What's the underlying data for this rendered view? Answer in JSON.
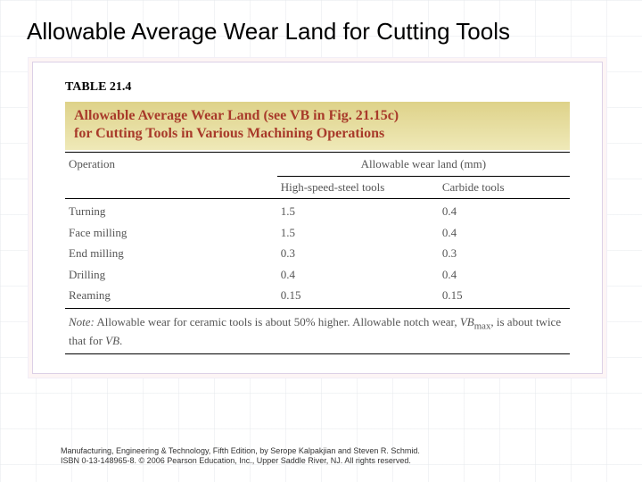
{
  "slide": {
    "title": "Allowable Average Wear Land for Cutting Tools"
  },
  "table": {
    "label": "TABLE 21.4",
    "caption_line1": "Allowable Average Wear Land (see VB in Fig. 21.15c)",
    "caption_line2": "for Cutting Tools in Various Machining Operations",
    "header": {
      "col1": "Operation",
      "col2_span": "Allowable wear land (mm)",
      "sub_col2": "High-speed-steel tools",
      "sub_col3": "Carbide tools"
    },
    "rows": [
      {
        "op": "Turning",
        "hs": "1.5",
        "cb": "0.4"
      },
      {
        "op": "Face milling",
        "hs": "1.5",
        "cb": "0.4"
      },
      {
        "op": "End milling",
        "hs": "0.3",
        "cb": "0.3"
      },
      {
        "op": "Drilling",
        "hs": "0.4",
        "cb": "0.4"
      },
      {
        "op": "Reaming",
        "hs": "0.15",
        "cb": "0.15"
      }
    ],
    "note_prefix": "Note:",
    "note_body": "  Allowable wear for ceramic tools is about 50% higher. Allowable notch wear, ",
    "note_symbol": "VB",
    "note_sub": "max",
    "note_tail": ", is about twice that for ",
    "note_symbol2": "VB",
    "note_end": "."
  },
  "credit": {
    "line1": "Manufacturing, Engineering & Technology, Fifth Edition, by Serope Kalpakjian and Steven R. Schmid.",
    "line2": "ISBN 0-13-148965-8. © 2006 Pearson Education, Inc., Upper Saddle River, NJ.  All rights reserved."
  },
  "style": {
    "caption_bg_top": "#ded289",
    "caption_bg_bottom": "#efe9b8",
    "caption_text_color": "#a83a2a",
    "rule_color": "#000000",
    "body_text_color": "#555555"
  }
}
